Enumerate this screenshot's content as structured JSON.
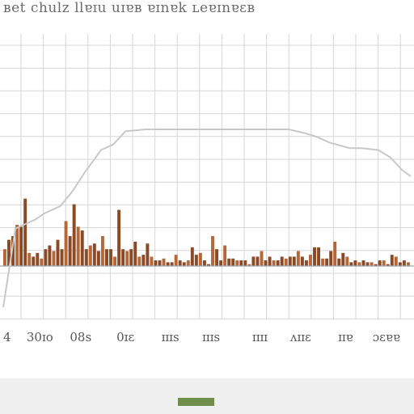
{
  "title": "ʙet chulz llɐɪu uɪɐʙ ɐɪnɐk ʟeɐɪnɐɛʙ",
  "colors": {
    "background": "#ffffff",
    "grid": "#d6d6d6",
    "bars": "#8b4a26",
    "bars_light": "#b5673a",
    "line": "#c8c8c8",
    "footer": "#f0f0f0",
    "footer_bar": "#6e8e4a"
  },
  "chart_data": {
    "type": "bar",
    "title": "ʙet chulz llɐɪu uɪɐʙ ɐɪnɐk ʟeɐɪnɐɛʙ",
    "xlabel": "",
    "ylabel": "",
    "grid": true,
    "legend": "none",
    "xlim": [
      0,
      100
    ],
    "ylim": [
      0,
      100
    ],
    "x_ticks": [
      {
        "x": 0,
        "label": "4"
      },
      {
        "x": 9,
        "label": "30ɪo"
      },
      {
        "x": 19,
        "label": "08s"
      },
      {
        "x": 30,
        "label": "0ɪɛ"
      },
      {
        "x": 41,
        "label": "ɪɪɪs"
      },
      {
        "x": 51,
        "label": "ɪɪɪs"
      },
      {
        "x": 63,
        "label": "ɪɪɪɪ"
      },
      {
        "x": 73,
        "label": "ʌɪɪɛ"
      },
      {
        "x": 84,
        "label": "ɪɪɐ"
      },
      {
        "x": 94,
        "label": "ɔɛɐɐ"
      }
    ],
    "series": [
      {
        "type": "bar",
        "x": [
          0,
          1,
          2,
          3,
          4,
          5,
          6,
          7,
          8,
          9,
          10,
          11,
          12,
          13,
          14,
          15,
          16,
          17,
          18,
          19,
          20,
          21,
          22,
          23,
          24,
          25,
          26,
          27,
          28,
          29,
          30,
          31,
          32,
          33,
          34,
          35,
          36,
          37,
          38,
          39,
          40,
          41,
          42,
          43,
          44,
          45,
          46,
          47,
          48,
          49,
          50,
          51,
          52,
          53,
          54,
          55,
          56,
          57,
          58,
          59,
          60,
          61,
          62,
          63,
          64,
          65,
          66,
          67,
          68,
          69,
          70,
          71,
          72,
          73,
          74,
          75,
          76,
          77,
          78,
          79,
          80,
          81,
          82,
          83,
          84,
          85,
          86,
          87,
          88,
          89,
          90,
          91,
          92,
          93,
          94,
          95,
          96,
          97,
          98,
          99
        ],
        "values": [
          9,
          14,
          16,
          22,
          21,
          36,
          7,
          5,
          7,
          4,
          9,
          11,
          8,
          14,
          9,
          24,
          16,
          33,
          21,
          19,
          9,
          11,
          12,
          8,
          16,
          9,
          9,
          5,
          30,
          9,
          8,
          9,
          13,
          5,
          6,
          12,
          5,
          3,
          3,
          4,
          2,
          2,
          6,
          3,
          2,
          3,
          10,
          6,
          7,
          3,
          1,
          16,
          9,
          3,
          11,
          4,
          4,
          3,
          3,
          3,
          1,
          5,
          5,
          8,
          3,
          5,
          3,
          3,
          5,
          4,
          5,
          5,
          8,
          5,
          3,
          6,
          10,
          10,
          4,
          4,
          8,
          13,
          4,
          7,
          5,
          2,
          3,
          2,
          3,
          2,
          2,
          1,
          3,
          3,
          1,
          6,
          5,
          2,
          3,
          2
        ]
      },
      {
        "type": "line",
        "x": [
          0,
          3,
          5,
          8,
          10,
          12,
          14,
          17,
          20,
          24,
          27,
          30,
          35,
          40,
          45,
          50,
          55,
          60,
          65,
          70,
          74,
          77,
          80,
          85,
          88,
          92,
          95,
          98,
          100
        ],
        "values": [
          -22,
          20,
          22,
          25,
          28,
          30,
          32,
          40,
          50,
          62,
          65,
          72,
          73,
          73,
          73,
          73,
          73,
          73,
          73,
          73,
          71,
          69,
          66,
          63,
          63,
          62,
          58,
          51,
          48
        ]
      }
    ]
  },
  "footer": {}
}
